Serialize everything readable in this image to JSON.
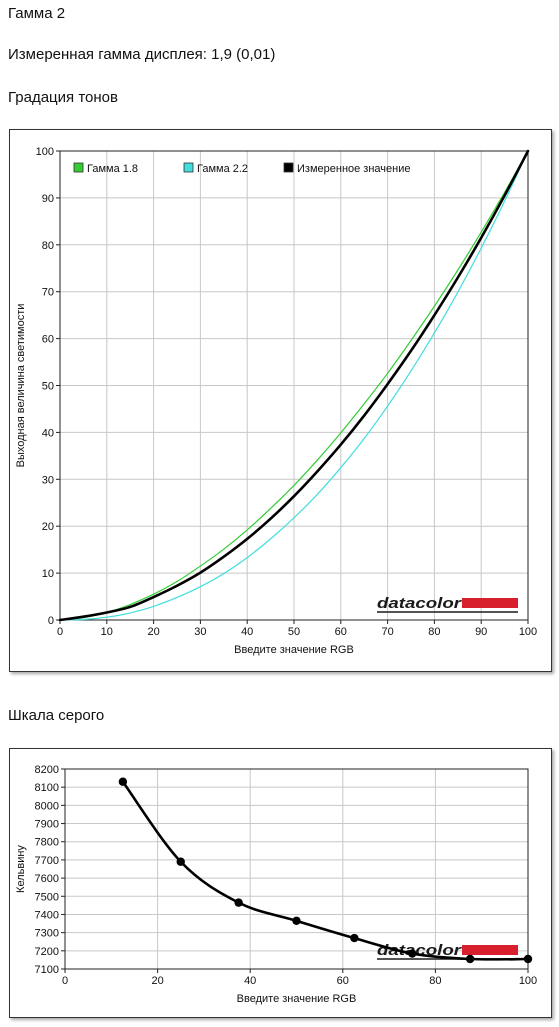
{
  "header": {
    "title": "Гамма 2",
    "measured": "Измеренная гамма дисплея: 1,9 (0,01)",
    "tone_heading": "Градация тонов",
    "gray_heading": "Шкала серого"
  },
  "colors": {
    "gamma18": "#33cc33",
    "gamma22": "#44dddd",
    "measured": "#000000",
    "grid": "#c8c8c8",
    "logo_bar": "#d8202c"
  },
  "watermark": {
    "brand": "datacolor"
  },
  "chart_data": [
    {
      "type": "line",
      "xlabel": "Введите значение RGB",
      "ylabel": "Выходная величина светимости",
      "xlim": [
        0,
        100
      ],
      "ylim": [
        0,
        100
      ],
      "xticks": [
        0,
        10,
        20,
        30,
        40,
        50,
        60,
        70,
        80,
        90,
        100
      ],
      "yticks": [
        0,
        10,
        20,
        30,
        40,
        50,
        60,
        70,
        80,
        90,
        100
      ],
      "grid": true,
      "legend_position": "top-left",
      "series": [
        {
          "name": "Гамма 1.8",
          "x": [
            0,
            5,
            10,
            15,
            20,
            25,
            30,
            35,
            40,
            45,
            50,
            55,
            60,
            65,
            70,
            75,
            80,
            85,
            90,
            95,
            100
          ],
          "y": [
            0,
            0.5,
            1.6,
            3.3,
            5.5,
            8.2,
            11.5,
            15.1,
            19.2,
            23.8,
            28.7,
            34.1,
            39.9,
            46.1,
            52.6,
            59.6,
            66.9,
            74.6,
            82.7,
            91.2,
            100
          ]
        },
        {
          "name": "Гамма 2.2",
          "x": [
            0,
            5,
            10,
            15,
            20,
            25,
            30,
            35,
            40,
            45,
            50,
            55,
            60,
            65,
            70,
            75,
            80,
            85,
            90,
            95,
            100
          ],
          "y": [
            0,
            0.1,
            0.6,
            1.5,
            2.9,
            4.8,
            7.1,
            9.9,
            13.3,
            17.3,
            21.8,
            26.8,
            32.5,
            38.7,
            45.6,
            53.1,
            61.2,
            69.9,
            79.3,
            89.3,
            100
          ]
        },
        {
          "name": "Измеренное значение",
          "x": [
            0,
            5,
            10,
            15,
            20,
            25,
            30,
            35,
            40,
            45,
            50,
            55,
            60,
            65,
            70,
            75,
            80,
            85,
            90,
            95,
            100
          ],
          "y": [
            0,
            0.7,
            1.6,
            2.8,
            4.9,
            7.3,
            10.1,
            13.5,
            17.3,
            21.6,
            26.4,
            31.7,
            37.4,
            43.6,
            50.3,
            57.4,
            65.0,
            73.0,
            81.5,
            90.5,
            100
          ]
        }
      ]
    },
    {
      "type": "line",
      "xlabel": "Введите значение RGB",
      "ylabel": "Кельвину",
      "xlim": [
        0,
        100
      ],
      "ylim": [
        7100,
        8200
      ],
      "xticks": [
        0,
        20,
        40,
        60,
        80,
        100
      ],
      "yticks": [
        7100,
        7200,
        7300,
        7400,
        7500,
        7600,
        7700,
        7800,
        7900,
        8000,
        8100,
        8200
      ],
      "grid": true,
      "series": [
        {
          "x": [
            12.5,
            25,
            37.5,
            50,
            62.5,
            75,
            87.5,
            100
          ],
          "y": [
            8130,
            7690,
            7465,
            7365,
            7270,
            7185,
            7155,
            7155
          ]
        }
      ]
    }
  ]
}
